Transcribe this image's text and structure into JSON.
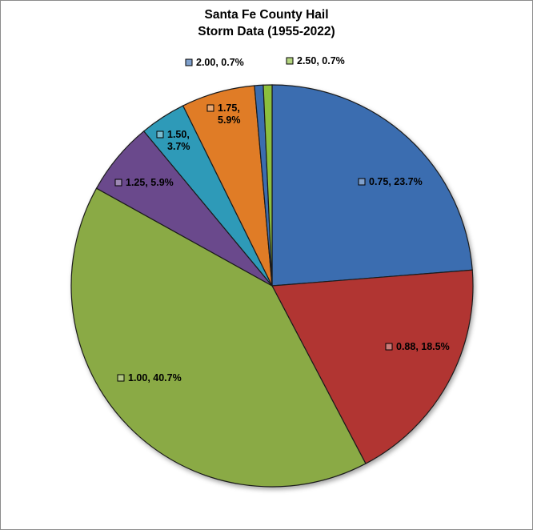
{
  "chart_data": {
    "type": "pie",
    "title_lines": [
      "Santa Fe County Hail",
      "Storm Data (1955-2022)"
    ],
    "start_angle_deg": 0,
    "direction": "clockwise",
    "slices": [
      {
        "category": "0.75",
        "percent": 23.7,
        "label_lines": [
          "0.75, 23.7%"
        ],
        "color": "#3a6db0"
      },
      {
        "category": "0.88",
        "percent": 18.5,
        "label_lines": [
          "0.88, 18.5%"
        ],
        "color": "#b13633"
      },
      {
        "category": "1.00",
        "percent": 40.7,
        "label_lines": [
          "1.00, 40.7%"
        ],
        "color": "#8aaa44"
      },
      {
        "category": "1.25",
        "percent": 5.9,
        "label_lines": [
          "1.25, 5.9%"
        ],
        "color": "#6a4a8c"
      },
      {
        "category": "1.50",
        "percent": 3.7,
        "label_lines": [
          "1.50,",
          "3.7%"
        ],
        "color": "#2e9ab8"
      },
      {
        "category": "1.75",
        "percent": 5.9,
        "label_lines": [
          "1.75,",
          "5.9%"
        ],
        "color": "#e07b28"
      },
      {
        "category": "2.00",
        "percent": 0.7,
        "label_lines": [
          "2.00, 0.7%"
        ],
        "color": "#3a6db0"
      },
      {
        "category": "2.50",
        "percent": 0.7,
        "label_lines": [
          "2.50, 0.7%"
        ],
        "color": "#8cbf3c"
      }
    ]
  }
}
